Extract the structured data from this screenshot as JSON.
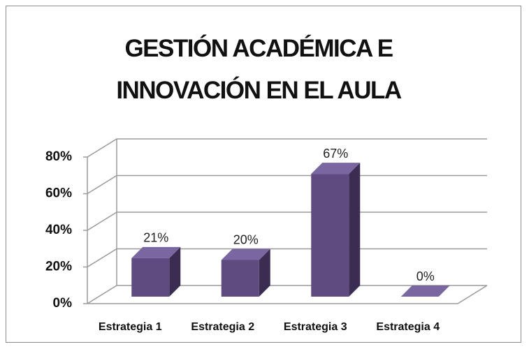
{
  "chart_data": {
    "type": "bar3d",
    "title": "GESTIÓN ACADÉMICA E INNOVACIÓN EN EL AULA",
    "categories": [
      "Estrategia 1",
      "Estrategia 2",
      "Estrategia 3",
      "Estrategia 4"
    ],
    "values": [
      21,
      20,
      67,
      0
    ],
    "value_labels": [
      "21%",
      "20%",
      "67%",
      "0%"
    ],
    "color": "#5f4b80",
    "ylim": [
      0,
      80
    ],
    "yticks": [
      {
        "value": 0,
        "label": "0%"
      },
      {
        "value": 20,
        "label": "20%"
      },
      {
        "value": 40,
        "label": "40%"
      },
      {
        "value": 60,
        "label": "60%"
      },
      {
        "value": 80,
        "label": "80%"
      }
    ],
    "grid": true
  }
}
